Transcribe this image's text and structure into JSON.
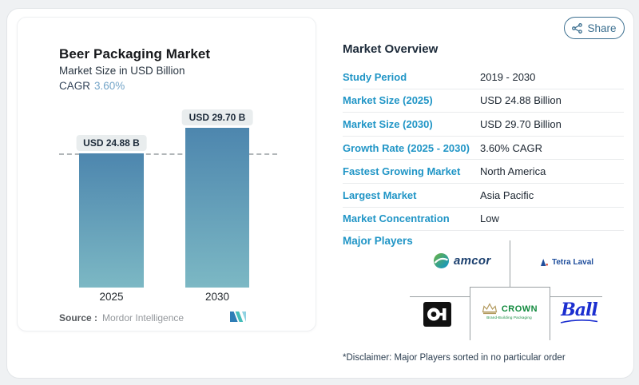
{
  "page": {
    "share_label": "Share"
  },
  "chart_card": {
    "title": "Beer Packaging Market",
    "subtitle": "Market Size in USD Billion",
    "cagr_label": "CAGR",
    "cagr_value": "3.60%",
    "source_label": "Source :",
    "source_value": "Mordor Intelligence"
  },
  "chart_data": {
    "type": "bar",
    "title": "Beer Packaging Market",
    "subtitle": "Market Size in USD Billion",
    "cagr": "3.60%",
    "categories": [
      "2025",
      "2030"
    ],
    "values": [
      24.88,
      29.7
    ],
    "value_labels": [
      "USD 24.88 B",
      "USD 29.70 B"
    ],
    "ylabel": "Market Size in USD Billion",
    "ylim": [
      0,
      29.7
    ],
    "reference_line": {
      "style": "dashed",
      "value": 24.88
    },
    "legend": "none",
    "grid": "off",
    "source": "Mordor Intelligence"
  },
  "overview": {
    "title": "Market Overview",
    "rows": [
      {
        "label": "Study Period",
        "value": "2019 - 2030"
      },
      {
        "label": "Market Size (2025)",
        "value": "USD 24.88 Billion"
      },
      {
        "label": "Market Size (2030)",
        "value": "USD 29.70 Billion"
      },
      {
        "label": "Growth Rate (2025 - 2030)",
        "value": "3.60% CAGR"
      },
      {
        "label": "Fastest Growing Market",
        "value": "North America"
      },
      {
        "label": "Largest Market",
        "value": "Asia Pacific"
      },
      {
        "label": "Market Concentration",
        "value": "Low"
      }
    ]
  },
  "major_players": {
    "title": "Major Players",
    "players": [
      {
        "name": "amcor"
      },
      {
        "name": "Tetra Laval"
      },
      {
        "name": "O-I"
      },
      {
        "name": "CROWN",
        "tagline": "Brand-Building Packaging"
      },
      {
        "name": "Ball"
      }
    ],
    "disclaimer": "*Disclaimer: Major Players sorted in no particular order"
  },
  "colors": {
    "accent_blue": "#2095c6",
    "navy": "#1d2b3a",
    "bar_gradient_top": "#4d86ae",
    "bar_gradient_bottom": "#7cb8c4",
    "share_button": "#3a6e8f",
    "cagr_value_blue": "#74a5c8"
  }
}
